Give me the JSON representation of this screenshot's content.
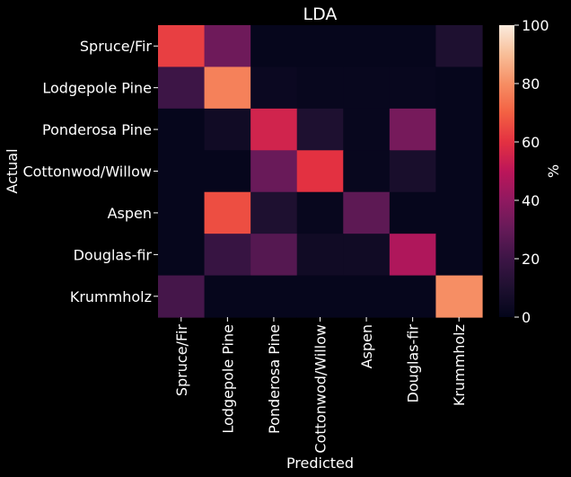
{
  "chart_data": {
    "type": "heatmap",
    "title": "LDA",
    "xlabel": "Predicted",
    "ylabel": "Actual",
    "colorbar_label": "%",
    "x_categories": [
      "Spruce/Fir",
      "Lodgepole Pine",
      "Ponderosa Pine",
      "Cottonwod/Willow",
      "Aspen",
      "Douglas-fir",
      "Krummholz"
    ],
    "y_categories": [
      "Spruce/Fir",
      "Lodgepole Pine",
      "Ponderosa Pine",
      "Cottonwod/Willow",
      "Aspen",
      "Douglas-fir",
      "Krummholz"
    ],
    "values": [
      [
        63,
        32,
        1,
        1,
        1,
        1,
        10
      ],
      [
        20,
        77,
        3,
        2,
        2,
        2,
        1
      ],
      [
        1,
        5,
        55,
        10,
        2,
        34,
        1
      ],
      [
        1,
        1,
        31,
        60,
        2,
        8,
        1
      ],
      [
        1,
        66,
        10,
        2,
        28,
        1,
        1
      ],
      [
        1,
        18,
        26,
        5,
        5,
        47,
        1
      ],
      [
        22,
        1,
        1,
        1,
        1,
        1,
        80
      ]
    ],
    "value_range": [
      0,
      100
    ],
    "colorbar_ticks": [
      0,
      20,
      40,
      60,
      80,
      100
    ],
    "colormap": "rocket",
    "background": "#000000",
    "text_color": "#ffffff"
  }
}
